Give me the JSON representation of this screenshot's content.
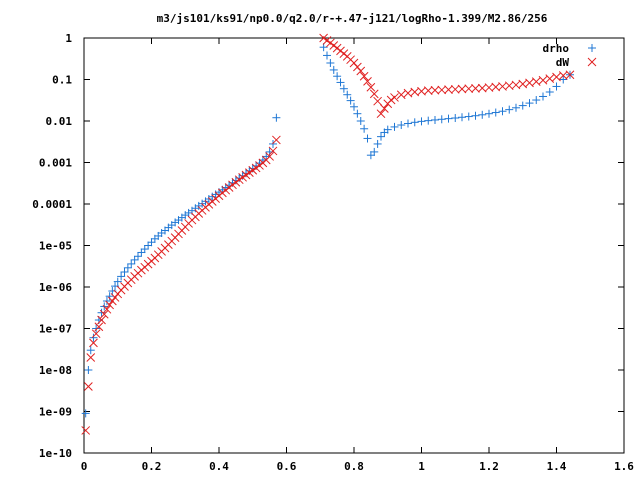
{
  "chart_data": {
    "type": "scatter",
    "title": "m3/js101/ks91/np0.0/q2.0/r-+.47-j121/logRho-1.399/M2.86/256",
    "xlabel": "",
    "ylabel": "",
    "xlim": [
      0,
      1.6
    ],
    "ylim": [
      1e-10,
      1
    ],
    "yscale": "log",
    "grid": false,
    "legend_position": "top-right",
    "x_ticks": [
      "0",
      "0.2",
      "0.4",
      "0.6",
      "0.8",
      "1",
      "1.2",
      "1.4",
      "1.6"
    ],
    "y_ticks": [
      "1e-10",
      "1e-09",
      "1e-08",
      "1e-07",
      "1e-06",
      "1e-05",
      "0.0001",
      "0.001",
      "0.01",
      "0.1",
      "1"
    ],
    "series": [
      {
        "name": "drho",
        "marker": "plus",
        "color": "#1f77d4",
        "x": [
          0.005,
          0.013,
          0.02,
          0.028,
          0.036,
          0.044,
          0.052,
          0.06,
          0.068,
          0.076,
          0.084,
          0.092,
          0.1,
          0.11,
          0.12,
          0.13,
          0.14,
          0.15,
          0.16,
          0.17,
          0.18,
          0.19,
          0.2,
          0.21,
          0.22,
          0.23,
          0.24,
          0.25,
          0.26,
          0.27,
          0.28,
          0.29,
          0.3,
          0.31,
          0.32,
          0.33,
          0.34,
          0.35,
          0.36,
          0.37,
          0.38,
          0.39,
          0.4,
          0.41,
          0.42,
          0.43,
          0.44,
          0.45,
          0.46,
          0.47,
          0.48,
          0.49,
          0.5,
          0.51,
          0.52,
          0.53,
          0.54,
          0.55,
          0.56,
          0.57,
          0.71,
          0.72,
          0.73,
          0.74,
          0.75,
          0.76,
          0.77,
          0.78,
          0.79,
          0.8,
          0.81,
          0.82,
          0.83,
          0.84,
          0.85,
          0.86,
          0.87,
          0.88,
          0.89,
          0.9,
          0.92,
          0.94,
          0.96,
          0.98,
          1.0,
          1.02,
          1.04,
          1.06,
          1.08,
          1.1,
          1.12,
          1.14,
          1.16,
          1.18,
          1.2,
          1.22,
          1.24,
          1.26,
          1.28,
          1.3,
          1.32,
          1.34,
          1.36,
          1.38,
          1.4,
          1.42,
          1.44
        ],
        "y": [
          9e-10,
          1e-08,
          3e-08,
          6e-08,
          1e-07,
          1.6e-07,
          2.4e-07,
          3.4e-07,
          4.6e-07,
          6e-07,
          8e-07,
          1.05e-06,
          1.35e-06,
          1.8e-06,
          2.3e-06,
          2.9e-06,
          3.6e-06,
          4.5e-06,
          5.5e-06,
          6.8e-06,
          8.2e-06,
          1e-05,
          1.2e-05,
          1.45e-05,
          1.7e-05,
          2e-05,
          2.3e-05,
          2.7e-05,
          3.1e-05,
          3.6e-05,
          4.1e-05,
          4.7e-05,
          5.4e-05,
          6.1e-05,
          6.9e-05,
          7.9e-05,
          9e-05,
          0.000102,
          0.000116,
          0.000132,
          0.00015,
          0.00017,
          0.000193,
          0.00022,
          0.00025,
          0.000285,
          0.000325,
          0.00037,
          0.00042,
          0.00048,
          0.00055,
          0.00063,
          0.00072,
          0.00083,
          0.00097,
          0.00115,
          0.0014,
          0.0018,
          0.0028,
          0.012,
          0.6,
          0.38,
          0.25,
          0.17,
          0.12,
          0.085,
          0.06,
          0.043,
          0.031,
          0.022,
          0.015,
          0.01,
          0.0065,
          0.0038,
          0.0015,
          0.0018,
          0.0028,
          0.0042,
          0.0053,
          0.0062,
          0.0072,
          0.008,
          0.0087,
          0.0093,
          0.0098,
          0.0102,
          0.0106,
          0.011,
          0.0114,
          0.0118,
          0.0123,
          0.0128,
          0.0134,
          0.0141,
          0.015,
          0.016,
          0.0172,
          0.0188,
          0.0208,
          0.0235,
          0.027,
          0.032,
          0.039,
          0.05,
          0.068,
          0.1,
          0.13
        ]
      },
      {
        "name": "dW",
        "marker": "cross",
        "color": "#e02020",
        "x": [
          0.005,
          0.013,
          0.02,
          0.028,
          0.036,
          0.044,
          0.052,
          0.06,
          0.068,
          0.076,
          0.084,
          0.092,
          0.1,
          0.11,
          0.12,
          0.13,
          0.14,
          0.15,
          0.16,
          0.17,
          0.18,
          0.19,
          0.2,
          0.21,
          0.22,
          0.23,
          0.24,
          0.25,
          0.26,
          0.27,
          0.28,
          0.29,
          0.3,
          0.31,
          0.32,
          0.33,
          0.34,
          0.35,
          0.36,
          0.37,
          0.38,
          0.39,
          0.4,
          0.41,
          0.42,
          0.43,
          0.44,
          0.45,
          0.46,
          0.47,
          0.48,
          0.49,
          0.5,
          0.51,
          0.52,
          0.53,
          0.54,
          0.55,
          0.56,
          0.57,
          0.71,
          0.72,
          0.73,
          0.74,
          0.75,
          0.76,
          0.77,
          0.78,
          0.79,
          0.8,
          0.81,
          0.82,
          0.83,
          0.84,
          0.85,
          0.86,
          0.87,
          0.88,
          0.89,
          0.9,
          0.91,
          0.92,
          0.94,
          0.96,
          0.98,
          1.0,
          1.02,
          1.04,
          1.06,
          1.08,
          1.1,
          1.12,
          1.14,
          1.16,
          1.18,
          1.2,
          1.22,
          1.24,
          1.26,
          1.28,
          1.3,
          1.32,
          1.34,
          1.36,
          1.38,
          1.4,
          1.42,
          1.44
        ],
        "y": [
          3.5e-10,
          4e-09,
          2e-08,
          4.5e-08,
          7.5e-08,
          1.1e-07,
          1.6e-07,
          2.2e-07,
          2.9e-07,
          3.7e-07,
          4.6e-07,
          5.6e-07,
          6.8e-07,
          8.4e-07,
          1.03e-06,
          1.25e-06,
          1.5e-06,
          1.8e-06,
          2.15e-06,
          2.55e-06,
          3e-06,
          3.55e-06,
          4.2e-06,
          5e-06,
          6e-06,
          7.2e-06,
          8.7e-06,
          1.05e-05,
          1.28e-05,
          1.55e-05,
          1.9e-05,
          2.3e-05,
          2.8e-05,
          3.4e-05,
          4.1e-05,
          4.9e-05,
          5.9e-05,
          7e-05,
          8.3e-05,
          9.8e-05,
          0.000115,
          0.000135,
          0.000158,
          0.000185,
          0.000215,
          0.00025,
          0.00029,
          0.000335,
          0.000385,
          0.00044,
          0.0005,
          0.00057,
          0.00065,
          0.00074,
          0.00085,
          0.00098,
          0.00115,
          0.0014,
          0.0019,
          0.0035,
          1.0,
          0.87,
          0.76,
          0.66,
          0.57,
          0.49,
          0.42,
          0.36,
          0.3,
          0.25,
          0.2,
          0.16,
          0.12,
          0.09,
          0.065,
          0.045,
          0.03,
          0.015,
          0.02,
          0.026,
          0.032,
          0.037,
          0.043,
          0.047,
          0.05,
          0.052,
          0.054,
          0.055,
          0.056,
          0.057,
          0.058,
          0.059,
          0.06,
          0.061,
          0.062,
          0.064,
          0.066,
          0.068,
          0.071,
          0.074,
          0.078,
          0.083,
          0.089,
          0.096,
          0.105,
          0.115,
          0.125,
          0.13
        ]
      }
    ]
  }
}
